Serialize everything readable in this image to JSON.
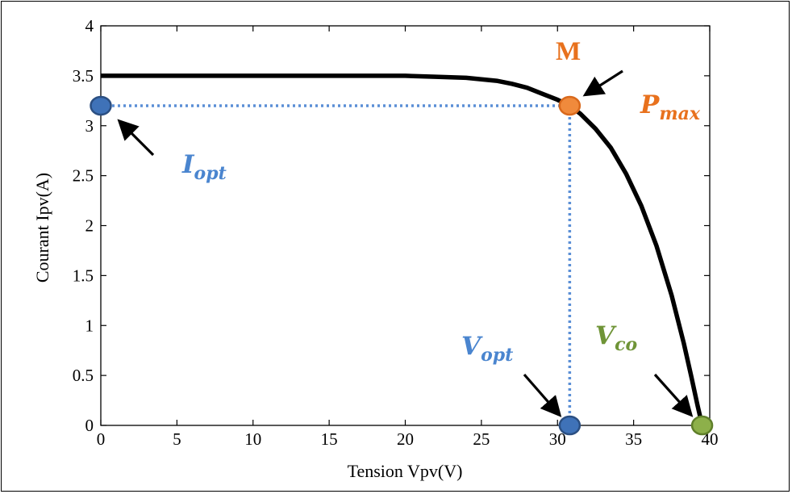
{
  "chart_data": {
    "type": "line",
    "xlabel": "Tension Vpv(V)",
    "ylabel": "Courant Ipv(A)",
    "xlim": [
      0,
      40
    ],
    "ylim": [
      0,
      4
    ],
    "xticks": [
      0,
      5,
      10,
      15,
      20,
      25,
      30,
      35,
      40
    ],
    "yticks": [
      0,
      0.5,
      1,
      1.5,
      2,
      2.5,
      3,
      3.5,
      4
    ],
    "grid": false,
    "series": [
      {
        "color": "#000000",
        "x": [
          0,
          5,
          10,
          15,
          20,
          22,
          24,
          26,
          27,
          28,
          29,
          30,
          30.8,
          31.5,
          32.5,
          33.5,
          34.5,
          35.5,
          36.5,
          37.5,
          38.3,
          38.8,
          39.2,
          39.5
        ],
        "y": [
          3.5,
          3.5,
          3.5,
          3.5,
          3.5,
          3.49,
          3.48,
          3.45,
          3.42,
          3.38,
          3.32,
          3.26,
          3.2,
          3.12,
          2.97,
          2.78,
          2.52,
          2.2,
          1.8,
          1.3,
          0.82,
          0.48,
          0.2,
          0.0
        ]
      }
    ],
    "guide_lines": [
      {
        "from": [
          0,
          3.2
        ],
        "to": [
          30.8,
          3.2
        ],
        "color": "#5b8fd6"
      },
      {
        "from": [
          30.8,
          3.2
        ],
        "to": [
          30.8,
          0
        ],
        "color": "#5b8fd6"
      }
    ],
    "markers": [
      {
        "id": "iopt-marker",
        "x": 0,
        "y": 3.2,
        "fill": "#3f72b8",
        "stroke": "#2b4f82"
      },
      {
        "id": "pmax-marker",
        "x": 30.8,
        "y": 3.2,
        "fill": "#f08a3c",
        "stroke": "#d9691c"
      },
      {
        "id": "vopt-marker",
        "x": 30.8,
        "y": 0,
        "fill": "#3f72b8",
        "stroke": "#2b4f82"
      },
      {
        "id": "vco-marker",
        "x": 39.5,
        "y": 0,
        "fill": "#8db04a",
        "stroke": "#5f7f2a"
      }
    ],
    "annotations": {
      "m": {
        "text": "M",
        "color": "#e8711d"
      },
      "pmax": {
        "main": "P",
        "sub": "max",
        "color": "#e8711d"
      },
      "iopt": {
        "main": "I",
        "sub": "opt",
        "color": "#4a85cf"
      },
      "vopt": {
        "main": "V",
        "sub": "opt",
        "color": "#4a85cf"
      },
      "vco": {
        "main": "V",
        "sub": "co",
        "color": "#6f9437"
      }
    }
  }
}
